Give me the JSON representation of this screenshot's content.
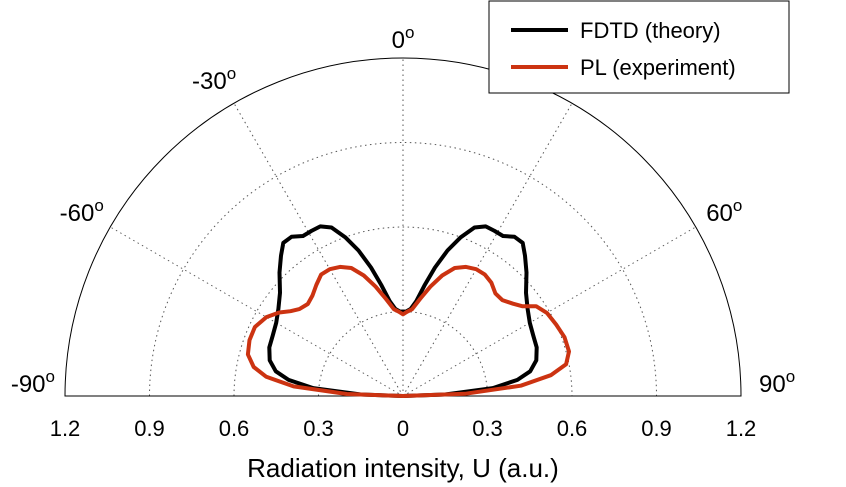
{
  "chart_data": {
    "type": "polar-line",
    "xlabel": "Radiation intensity, U (a.u.)",
    "r_ticks": [
      "1.2",
      "0.9",
      "0.6",
      "0.3",
      "0",
      "0.3",
      "0.6",
      "0.9",
      "1.2"
    ],
    "r_tick_values": [
      -1.2,
      -0.9,
      -0.6,
      -0.3,
      0,
      0.3,
      0.6,
      0.9,
      1.2
    ],
    "rmax": 1.2,
    "angle_labels": [
      {
        "deg": -90,
        "text": "-90",
        "sup": "o"
      },
      {
        "deg": -60,
        "text": "-60",
        "sup": "o"
      },
      {
        "deg": -30,
        "text": "-30",
        "sup": "o"
      },
      {
        "deg": 0,
        "text": "0",
        "sup": "o"
      },
      {
        "deg": 60,
        "text": "60",
        "sup": "o"
      },
      {
        "deg": 90,
        "text": "90",
        "sup": "o"
      }
    ],
    "grid_angles_deg": [
      -60,
      -30,
      0,
      30,
      60
    ],
    "grid_radii": [
      0.3,
      0.6,
      0.9
    ],
    "legend": {
      "position": "top-right"
    },
    "series": [
      {
        "name": "FDTD (theory)",
        "color": "#000000",
        "points_angle_deg_radius": [
          [
            -90,
            0.0
          ],
          [
            -88,
            0.15
          ],
          [
            -85,
            0.32
          ],
          [
            -82,
            0.41
          ],
          [
            -79,
            0.46
          ],
          [
            -75,
            0.49
          ],
          [
            -70,
            0.505
          ],
          [
            -65,
            0.51
          ],
          [
            -60,
            0.52
          ],
          [
            -55,
            0.54
          ],
          [
            -50,
            0.57
          ],
          [
            -45,
            0.62
          ],
          [
            -41,
            0.66
          ],
          [
            -38,
            0.69
          ],
          [
            -35,
            0.69
          ],
          [
            -32,
            0.67
          ],
          [
            -29,
            0.67
          ],
          [
            -26,
            0.67
          ],
          [
            -23,
            0.65
          ],
          [
            -20,
            0.6
          ],
          [
            -17,
            0.54
          ],
          [
            -14,
            0.47
          ],
          [
            -11,
            0.4
          ],
          [
            -8,
            0.34
          ],
          [
            -5,
            0.31
          ],
          [
            -2,
            0.3
          ],
          [
            0,
            0.3
          ],
          [
            2,
            0.3
          ],
          [
            5,
            0.31
          ],
          [
            8,
            0.34
          ],
          [
            11,
            0.4
          ],
          [
            14,
            0.47
          ],
          [
            17,
            0.54
          ],
          [
            20,
            0.6
          ],
          [
            23,
            0.65
          ],
          [
            26,
            0.67
          ],
          [
            29,
            0.67
          ],
          [
            32,
            0.67
          ],
          [
            35,
            0.69
          ],
          [
            38,
            0.69
          ],
          [
            41,
            0.66
          ],
          [
            45,
            0.62
          ],
          [
            50,
            0.57
          ],
          [
            55,
            0.54
          ],
          [
            60,
            0.52
          ],
          [
            65,
            0.51
          ],
          [
            70,
            0.505
          ],
          [
            75,
            0.49
          ],
          [
            79,
            0.46
          ],
          [
            82,
            0.41
          ],
          [
            85,
            0.32
          ],
          [
            88,
            0.15
          ],
          [
            90,
            0.0
          ]
        ]
      },
      {
        "name": "PL (experiment)",
        "color": "#cc3311",
        "points_angle_deg_radius": [
          [
            -90,
            0.0
          ],
          [
            -88,
            0.2
          ],
          [
            -85,
            0.39
          ],
          [
            -82,
            0.49
          ],
          [
            -79,
            0.54
          ],
          [
            -75,
            0.57
          ],
          [
            -70,
            0.58
          ],
          [
            -65,
            0.58
          ],
          [
            -60,
            0.56
          ],
          [
            -56,
            0.53
          ],
          [
            -53,
            0.5
          ],
          [
            -50,
            0.48
          ],
          [
            -46,
            0.47
          ],
          [
            -42,
            0.48
          ],
          [
            -38,
            0.5
          ],
          [
            -34,
            0.52
          ],
          [
            -30,
            0.52
          ],
          [
            -26,
            0.51
          ],
          [
            -22,
            0.49
          ],
          [
            -18,
            0.45
          ],
          [
            -14,
            0.4
          ],
          [
            -10,
            0.35
          ],
          [
            -6,
            0.31
          ],
          [
            -3,
            0.3
          ],
          [
            0,
            0.29
          ],
          [
            3,
            0.3
          ],
          [
            6,
            0.31
          ],
          [
            10,
            0.35
          ],
          [
            14,
            0.4
          ],
          [
            18,
            0.45
          ],
          [
            22,
            0.49
          ],
          [
            26,
            0.51
          ],
          [
            30,
            0.52
          ],
          [
            34,
            0.52
          ],
          [
            38,
            0.51
          ],
          [
            42,
            0.49
          ],
          [
            46,
            0.49
          ],
          [
            50,
            0.51
          ],
          [
            53,
            0.53
          ],
          [
            56,
            0.57
          ],
          [
            60,
            0.59
          ],
          [
            65,
            0.6
          ],
          [
            70,
            0.61
          ],
          [
            75,
            0.61
          ],
          [
            79,
            0.59
          ],
          [
            82,
            0.53
          ],
          [
            85,
            0.42
          ],
          [
            88,
            0.22
          ],
          [
            90,
            0.0
          ]
        ]
      }
    ]
  }
}
